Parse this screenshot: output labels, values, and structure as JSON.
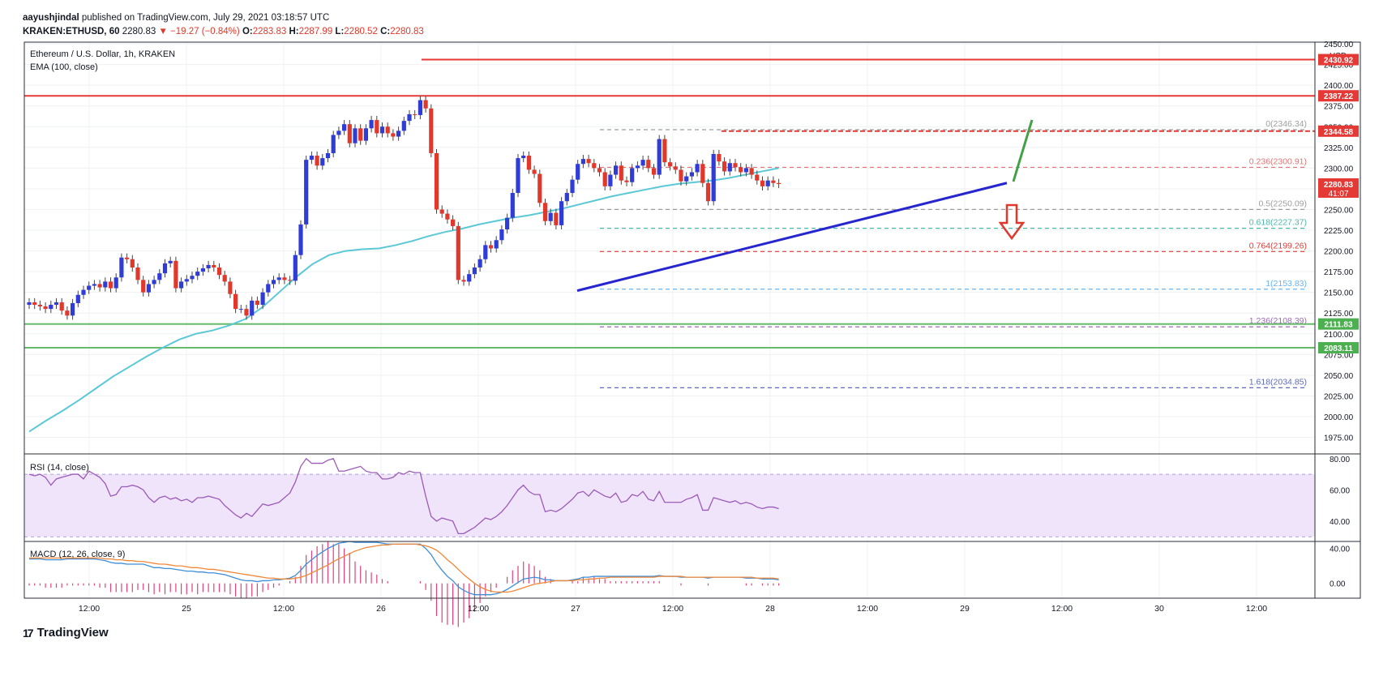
{
  "header": {
    "author": "aayushjindal",
    "published_text": "published on TradingView.com, July 29, 2021 03:18:57 UTC",
    "symbol": "KRAKEN:ETHUSD, 60",
    "last": "2280.83",
    "change": "▼ −19.27 (−0.84%)",
    "o_label": "O:",
    "o": "2283.83",
    "h_label": "H:",
    "h": "2287.99",
    "l_label": "L:",
    "l": "2280.52",
    "c_label": "C:",
    "c": "2280.83"
  },
  "legend": {
    "title": "Ethereum / U.S. Dollar, 1h, KRAKEN",
    "ema": "EMA (100, close)",
    "rsi": "RSI (14, close)",
    "macd": "MACD (12, 26, close, 9)"
  },
  "footer": {
    "brand": "TradingView",
    "logo": "17"
  },
  "colors": {
    "up": "#2f3cd6",
    "down": "#e0392b",
    "ema": "#5bc8d6",
    "trend": "#2626d0",
    "resistance": "#e53935",
    "support": "#66bb6a",
    "rsi": "#9c5ab8",
    "rsi_band": "#efe4fa",
    "macd": "#3e8ed8",
    "signal": "#f0883a",
    "hist": "#e0417a",
    "arrow_up": "#43a047"
  },
  "chart_data": [
    {
      "type": "candlestick",
      "title": "Ethereum / U.S. Dollar, 1h, KRAKEN",
      "currency": "USD",
      "ylim": [
        1955,
        2452
      ],
      "y_ticks": [
        1975,
        2000,
        2025,
        2050,
        2075,
        2100,
        2125,
        2150,
        2175,
        2200,
        2225,
        2250,
        2275,
        2300,
        2325,
        2350,
        2375,
        2400,
        2425,
        2450
      ],
      "y_tick_labels": [
        "1975.00",
        "2000.00",
        "2025.00",
        "2050.00",
        "2075.00",
        "2100.00",
        "2125.00",
        "2150.00",
        "2175.00",
        "2200.00",
        "2225.00",
        "2250.00",
        "2275.00",
        "2300.00",
        "2325.00",
        "2350.00",
        "2375.00",
        "2400.00",
        "2425.00",
        "2450.00"
      ],
      "x_ticks": [
        "12:00",
        "25",
        "12:00",
        "26",
        "12:00",
        "27",
        "12:00",
        "28",
        "12:00",
        "29",
        "12:00",
        "30",
        "12:00"
      ],
      "closes": [
        2138,
        2135,
        2133,
        2130,
        2135,
        2138,
        2128,
        2122,
        2137,
        2147,
        2153,
        2158,
        2160,
        2156,
        2163,
        2155,
        2168,
        2192,
        2190,
        2180,
        2165,
        2150,
        2160,
        2165,
        2173,
        2185,
        2188,
        2155,
        2163,
        2166,
        2170,
        2175,
        2179,
        2183,
        2180,
        2171,
        2163,
        2148,
        2130,
        2130,
        2122,
        2140,
        2135,
        2150,
        2160,
        2165,
        2168,
        2165,
        2164,
        2195,
        2232,
        2310,
        2315,
        2303,
        2312,
        2318,
        2340,
        2345,
        2353,
        2330,
        2348,
        2333,
        2348,
        2358,
        2342,
        2350,
        2342,
        2338,
        2345,
        2357,
        2365,
        2364,
        2382,
        2372,
        2318,
        2250,
        2245,
        2238,
        2230,
        2165,
        2163,
        2172,
        2180,
        2190,
        2207,
        2203,
        2213,
        2226,
        2240,
        2270,
        2312,
        2315,
        2298,
        2293,
        2258,
        2236,
        2246,
        2231,
        2260,
        2270,
        2286,
        2305,
        2311,
        2306,
        2300,
        2295,
        2278,
        2292,
        2303,
        2285,
        2283,
        2300,
        2303,
        2310,
        2300,
        2292,
        2335,
        2307,
        2302,
        2298,
        2284,
        2290,
        2295,
        2305,
        2282,
        2260,
        2317,
        2308,
        2296,
        2306,
        2301,
        2295,
        2300,
        2292,
        2285,
        2278,
        2285,
        2282,
        2280.83
      ],
      "ema100": [
        [
          0,
          1982
        ],
        [
          10,
          1995
        ],
        [
          20,
          2007
        ],
        [
          30,
          2020
        ],
        [
          40,
          2034
        ],
        [
          50,
          2048
        ],
        [
          60,
          2060
        ],
        [
          70,
          2072
        ],
        [
          80,
          2083
        ],
        [
          90,
          2093
        ],
        [
          100,
          2100
        ],
        [
          110,
          2104
        ],
        [
          120,
          2110
        ],
        [
          130,
          2118
        ],
        [
          140,
          2132
        ],
        [
          150,
          2150
        ],
        [
          160,
          2168
        ],
        [
          170,
          2184
        ],
        [
          180,
          2195
        ],
        [
          190,
          2200
        ],
        [
          200,
          2202
        ],
        [
          210,
          2203
        ],
        [
          220,
          2207
        ],
        [
          230,
          2212
        ],
        [
          240,
          2218
        ],
        [
          250,
          2223
        ],
        [
          260,
          2227
        ],
        [
          270,
          2232
        ],
        [
          280,
          2236
        ],
        [
          290,
          2240
        ],
        [
          300,
          2243
        ],
        [
          310,
          2247
        ],
        [
          320,
          2251
        ],
        [
          330,
          2256
        ],
        [
          340,
          2261
        ],
        [
          350,
          2266
        ],
        [
          360,
          2270
        ],
        [
          370,
          2274
        ],
        [
          380,
          2278
        ],
        [
          390,
          2281
        ],
        [
          400,
          2283
        ],
        [
          410,
          2285
        ],
        [
          420,
          2288
        ],
        [
          430,
          2292
        ],
        [
          440,
          2296
        ],
        [
          450,
          2300
        ]
      ],
      "price_labels": [
        {
          "value": 2430.92,
          "text": "2430.92",
          "color": "#e53935"
        },
        {
          "value": 2387.22,
          "text": "2387.22",
          "color": "#e53935"
        },
        {
          "value": 2344.58,
          "text": "2344.58",
          "color": "#e53935"
        },
        {
          "value": 2280.83,
          "text": "2280.83",
          "sub": "41:07",
          "color": "#e53935"
        },
        {
          "value": 2111.83,
          "text": "2111.83",
          "color": "#4caf50"
        },
        {
          "value": 2083.11,
          "text": "2083.11",
          "color": "#4caf50"
        }
      ],
      "fib_levels": [
        {
          "ratio": "0",
          "value": 2346.34,
          "text": "0(2346.34)",
          "color": "#9e9e9e"
        },
        {
          "ratio": "0.236",
          "value": 2300.91,
          "text": "0.236(2300.91)",
          "color": "#e57373"
        },
        {
          "ratio": "0.5",
          "value": 2250.09,
          "text": "0.5(2250.09)",
          "color": "#9e9e9e"
        },
        {
          "ratio": "0.618",
          "value": 2227.37,
          "text": "0.618(2227.37)",
          "color": "#4db6ac"
        },
        {
          "ratio": "0.764",
          "value": 2199.26,
          "text": "0.764(2199.26)",
          "color": "#e53935"
        },
        {
          "ratio": "1",
          "value": 2153.83,
          "text": "1(2153.83)",
          "color": "#64b5f6"
        },
        {
          "ratio": "1.236",
          "value": 2108.39,
          "text": "1.236(2108.39)",
          "color": "#9c6ab8"
        },
        {
          "ratio": "1.618",
          "value": 2034.85,
          "text": "1.618(2034.85)",
          "color": "#5c6bc0"
        }
      ],
      "trendline": {
        "from": 2153,
        "to": 2282
      }
    },
    {
      "type": "line",
      "title": "RSI (14, close)",
      "ylim": [
        27,
        83
      ],
      "y_ticks": [
        40,
        60,
        80
      ],
      "y_tick_labels": [
        "40.00",
        "60.00",
        "80.00"
      ],
      "band": [
        30,
        70
      ],
      "values": [
        70,
        69,
        70,
        68,
        63,
        67,
        68,
        69,
        70,
        70,
        67,
        72,
        70,
        68,
        64,
        56,
        57,
        62,
        62,
        63,
        62,
        60,
        55,
        52,
        55,
        56,
        54,
        55,
        53,
        54,
        52,
        55,
        55,
        56,
        55,
        54,
        50,
        47,
        44,
        42,
        45,
        43,
        47,
        51,
        50,
        51,
        52,
        55,
        58,
        65,
        75,
        80,
        77,
        77,
        77,
        79,
        80,
        72,
        72,
        73,
        74,
        75,
        72,
        71,
        71,
        67,
        67,
        68,
        71,
        70,
        72,
        71,
        71,
        56,
        43,
        40,
        42,
        41,
        40,
        32,
        32,
        34,
        36,
        39,
        42,
        41,
        43,
        46,
        50,
        55,
        60,
        63,
        59,
        57,
        57,
        46,
        47,
        46,
        48,
        51,
        54,
        58,
        59,
        56,
        60,
        58,
        56,
        55,
        58,
        52,
        53,
        57,
        56,
        59,
        54,
        53,
        59,
        52,
        52,
        52,
        52,
        54,
        55,
        57,
        47,
        47,
        55,
        54,
        53,
        52,
        53,
        51,
        52,
        51,
        49,
        48,
        49,
        49,
        48
      ]
    },
    {
      "type": "line",
      "title": "MACD (12, 26, close, 9)",
      "ylim": [
        -17,
        48
      ],
      "y_ticks": [
        0,
        40
      ],
      "y_tick_labels": [
        "0.00",
        "40.00"
      ],
      "series": [
        {
          "name": "MACD",
          "values": [
            28,
            28,
            28,
            27,
            27,
            27,
            27,
            28,
            28,
            28,
            28,
            28,
            28,
            27,
            26,
            24,
            23,
            23,
            22,
            22,
            22,
            22,
            20,
            18,
            18,
            17,
            17,
            16,
            15,
            14,
            14,
            13,
            13,
            12,
            12,
            11,
            10,
            8,
            6,
            4,
            3,
            3,
            2,
            3,
            3,
            4,
            4,
            5,
            6,
            9,
            15,
            22,
            27,
            32,
            36,
            40,
            43,
            46,
            47,
            48,
            47,
            47,
            47,
            47,
            47,
            46,
            45,
            45,
            45,
            45,
            45,
            45,
            45,
            40,
            33,
            23,
            15,
            8,
            3,
            -4,
            -8,
            -11,
            -13,
            -13,
            -13,
            -13,
            -12,
            -10,
            -7,
            -3,
            1,
            5,
            6,
            7,
            6,
            4,
            4,
            3,
            3,
            3,
            4,
            5,
            7,
            7,
            8,
            8,
            8,
            8,
            8,
            8,
            8,
            8,
            8,
            8,
            8,
            8,
            9,
            8,
            8,
            8,
            7,
            7,
            7,
            7,
            7,
            6,
            7,
            7,
            7,
            7,
            7,
            7,
            6,
            6,
            6,
            5,
            5,
            5,
            4
          ]
        },
        {
          "name": "Signal",
          "values": [
            29,
            29,
            29,
            29,
            29,
            29,
            29,
            29,
            29,
            29,
            29,
            29,
            29,
            29,
            28,
            28,
            27,
            27,
            26,
            26,
            25,
            25,
            24,
            23,
            22,
            22,
            21,
            20,
            20,
            19,
            18,
            18,
            17,
            16,
            16,
            15,
            14,
            13,
            12,
            11,
            10,
            9,
            8,
            7,
            6,
            6,
            5,
            5,
            5,
            6,
            7,
            9,
            12,
            15,
            18,
            21,
            25,
            28,
            31,
            34,
            37,
            39,
            41,
            42,
            43,
            44,
            44,
            45,
            45,
            45,
            45,
            45,
            44,
            43,
            41,
            38,
            33,
            27,
            22,
            16,
            10,
            5,
            0,
            -4,
            -7,
            -9,
            -10,
            -10,
            -10,
            -9,
            -7,
            -5,
            -3,
            -1,
            0,
            1,
            2,
            3,
            3,
            3,
            3,
            4,
            4,
            5,
            5,
            6,
            6,
            7,
            7,
            7,
            7,
            7,
            7,
            7,
            7,
            7,
            8,
            8,
            8,
            8,
            8,
            7,
            7,
            7,
            7,
            7,
            7,
            7,
            7,
            7,
            7,
            7,
            7,
            7,
            6,
            6,
            6,
            6,
            5
          ]
        }
      ]
    }
  ]
}
